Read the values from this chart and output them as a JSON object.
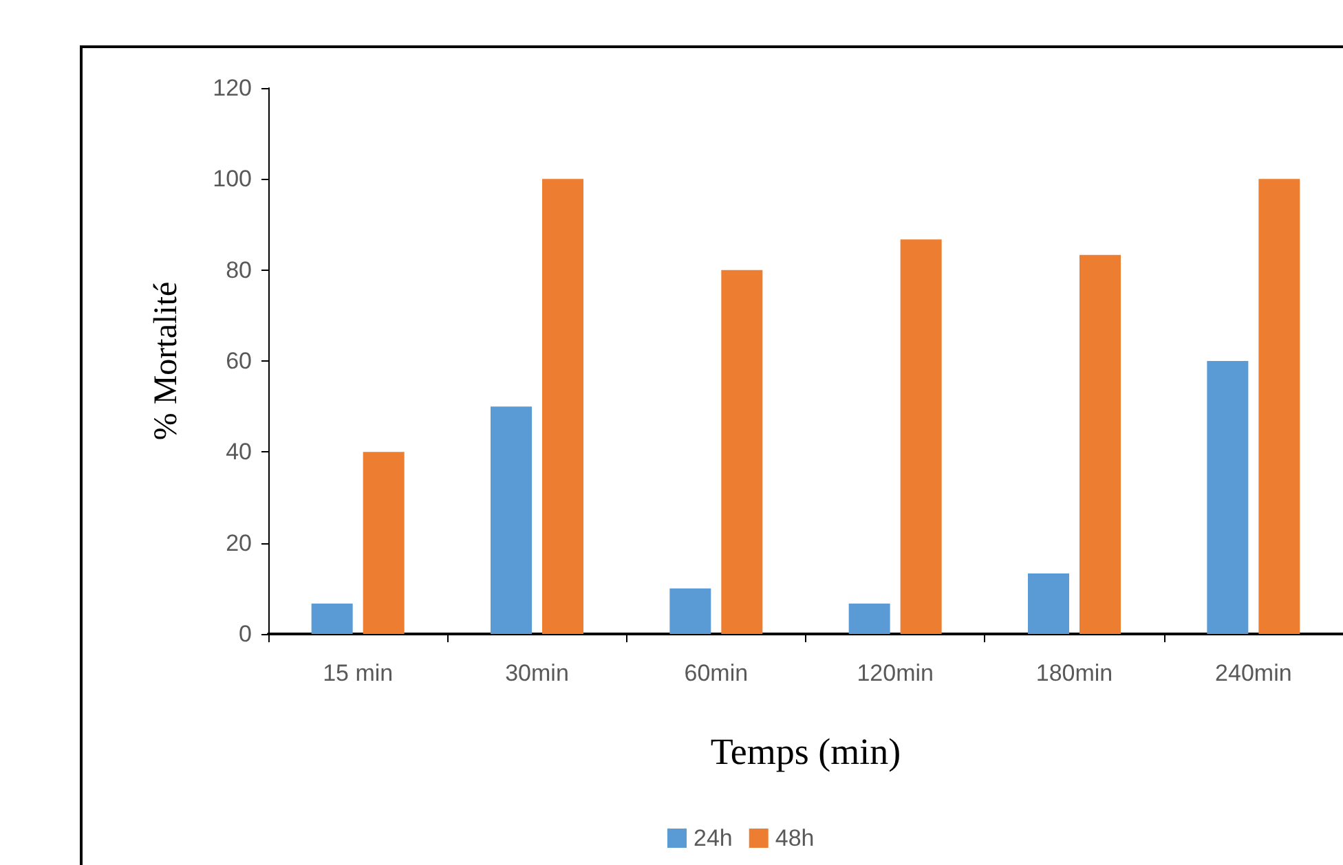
{
  "chart_data": {
    "type": "bar",
    "xlabel": "Temps (min)",
    "ylabel": "% Mortalité",
    "categories": [
      "15 min",
      "30min",
      "60min",
      "120min",
      "180min",
      "240min"
    ],
    "series": [
      {
        "name": "24h",
        "color": "#5b9bd5",
        "values": [
          6.7,
          50,
          10,
          6.7,
          13.3,
          60
        ]
      },
      {
        "name": "48h",
        "color": "#ed7d31",
        "values": [
          40,
          100,
          80,
          86.7,
          83.3,
          100
        ]
      }
    ],
    "ylim": [
      0,
      120
    ],
    "yticks": [
      0,
      20,
      40,
      60,
      80,
      100,
      120
    ],
    "grid": false,
    "legend": "bottom"
  }
}
